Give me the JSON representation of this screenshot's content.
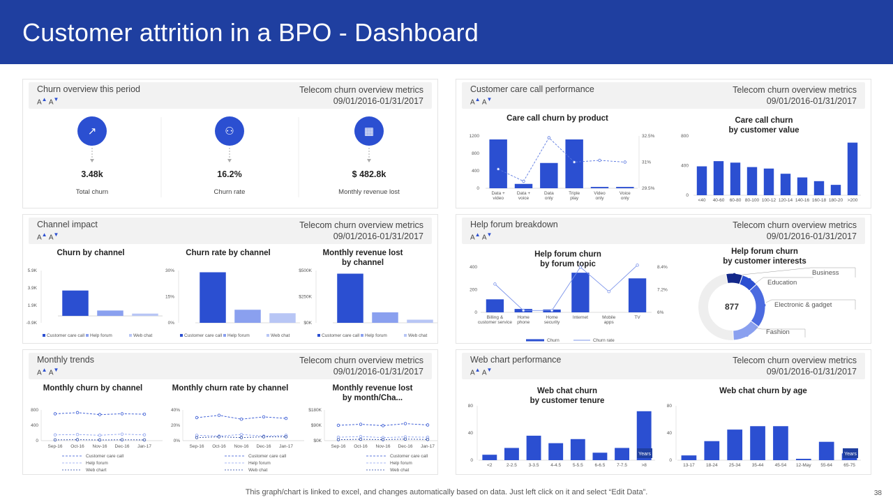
{
  "header": {
    "title": "Customer attrition in a BPO - Dashboard"
  },
  "common": {
    "metrics_label": "Telecom churn overview metrics",
    "date_range": "09/01/2016-01/31/2017",
    "font_toggle": "A A"
  },
  "panels": {
    "churn_overview": {
      "title": "Churn overview this period"
    },
    "care_call": {
      "title": "Customer care call performance"
    },
    "channel_impact": {
      "title": "Channel impact"
    },
    "help_forum": {
      "title": "Help forum breakdown"
    },
    "monthly_trends": {
      "title": "Monthly trends"
    },
    "web_chat": {
      "title": "Web chart performance"
    }
  },
  "kpis": [
    {
      "value": "3.48k",
      "label": "Total churn",
      "icon": "churn-chart-icon"
    },
    {
      "value": "16.2%",
      "label": "Churn rate",
      "icon": "churn-users-icon"
    },
    {
      "value": "$ 482.8k",
      "label": "Monthly revenue lost",
      "icon": "revenue-calendar-icon"
    }
  ],
  "colors": {
    "bar": "#2b4fd1",
    "light": "#8aa0ef",
    "lighter": "#b8c6f5",
    "header": "#1f3fa0"
  },
  "footer": {
    "note": "This graph/chart is linked to excel, and changes automatically based on data. Just left click on it and select “Edit Data”.",
    "page": "38"
  },
  "chart_data": [
    {
      "id": "care_product",
      "type": "bar",
      "title": "Care call churn by product",
      "categories": [
        "Data + video",
        "Data + voice",
        "Data only",
        "Triple play",
        "Video only",
        "Voice only"
      ],
      "series": [
        {
          "name": "Churn",
          "values": [
            1120,
            100,
            580,
            1120,
            30,
            30
          ]
        },
        {
          "name": "Churn rate",
          "values": [
            30.6,
            29.9,
            32.4,
            31.0,
            31.1,
            31.0
          ]
        }
      ],
      "y_ticks": [
        "1200",
        "800",
        "400",
        "0"
      ],
      "y2_ticks": [
        "32.5%",
        "31%",
        "29.5%"
      ],
      "ylim": [
        0,
        1200
      ],
      "y2lim": [
        29.5,
        32.5
      ]
    },
    {
      "id": "care_value",
      "type": "bar",
      "title": "Care call churn by customer value",
      "categories": [
        "<40",
        "40-60",
        "60-80",
        "80-100",
        "100-12",
        "120-14",
        "140-16",
        "160-18",
        "180-20",
        ">200"
      ],
      "values": [
        390,
        460,
        440,
        380,
        360,
        290,
        240,
        190,
        140,
        710
      ],
      "y_ticks": [
        "800",
        "400",
        "0"
      ],
      "ylim": [
        0,
        800
      ]
    },
    {
      "id": "churn_channel",
      "type": "bar",
      "title": "Churn by channel",
      "categories": [
        "Customer care call",
        "Help forum",
        "Web chat"
      ],
      "values": [
        3.3,
        0.7,
        0.3
      ],
      "y_ticks": [
        "5.9K",
        "3.9K",
        "1.9K",
        "-0.9K"
      ],
      "ylim": [
        -0.9,
        5.9
      ]
    },
    {
      "id": "rate_channel",
      "type": "bar",
      "title": "Churn rate by channel",
      "categories": [
        "Customer care call",
        "Help forum",
        "Web chat"
      ],
      "values": [
        29,
        7.5,
        5.5
      ],
      "y_ticks": [
        "30%",
        "15%",
        "0%"
      ],
      "ylim": [
        0,
        30
      ]
    },
    {
      "id": "revenue_channel",
      "type": "bar",
      "title": "Monthly revenue lost by channel",
      "categories": [
        "Customer care call",
        "Help forum",
        "Web chat"
      ],
      "values": [
        470,
        100,
        30
      ],
      "y_ticks": [
        "$500K",
        "$250K",
        "$0K"
      ],
      "ylim": [
        0,
        500
      ]
    },
    {
      "id": "forum_topic",
      "type": "bar",
      "title": "Help forum churn by forum topic",
      "categories": [
        "Billing & customer service",
        "Home phone",
        "Home security",
        "Internet",
        "Mobile apps",
        "TV"
      ],
      "series": [
        {
          "name": "Churn",
          "values": [
            115,
            30,
            25,
            350,
            0,
            300
          ]
        },
        {
          "name": "Churn rate",
          "values": [
            7.5,
            6.1,
            6.1,
            8.4,
            7.1,
            8.5
          ]
        }
      ],
      "y_ticks": [
        "400",
        "200",
        "0"
      ],
      "y2_ticks": [
        "8.4%",
        "7.2%",
        "6%"
      ],
      "ylim": [
        0,
        400
      ],
      "y2lim": [
        6,
        8.4
      ],
      "legend": [
        "Churn",
        "Churn rate"
      ]
    },
    {
      "id": "forum_interest",
      "type": "pie",
      "title": "Help forum churn by customer interests",
      "center_label": "877",
      "categories": [
        "Business",
        "Education",
        "Electronic & gadget",
        "Fashion"
      ],
      "values": [
        8,
        8,
        22,
        14
      ]
    },
    {
      "id": "trend_churn",
      "type": "line",
      "title": "Monthly churn by channel",
      "x": [
        "Sep-16",
        "Oct-16",
        "Nov-16",
        "Dec-16",
        "Jan-17"
      ],
      "series": [
        {
          "name": "Customer care call",
          "values": [
            700,
            730,
            680,
            700,
            690
          ]
        },
        {
          "name": "Help forum",
          "values": [
            150,
            160,
            140,
            170,
            150
          ]
        },
        {
          "name": "Web chart",
          "values": [
            20,
            25,
            18,
            22,
            20
          ]
        }
      ],
      "y_ticks": [
        "800",
        "400",
        "0"
      ],
      "ylim": [
        0,
        800
      ]
    },
    {
      "id": "trend_rate",
      "type": "line",
      "title": "Monthly churn rate by channel",
      "x": [
        "Sep-16",
        "Oct-16",
        "Nov-16",
        "Dec-16",
        "Jan-17"
      ],
      "series": [
        {
          "name": "Customer care call",
          "values": [
            30,
            33,
            28,
            31,
            29
          ]
        },
        {
          "name": "Help forum",
          "values": [
            7,
            6,
            8,
            6,
            7
          ]
        },
        {
          "name": "Web chat",
          "values": [
            4,
            5,
            4,
            5,
            5
          ]
        }
      ],
      "y_ticks": [
        "40%",
        "20%",
        "0%"
      ],
      "ylim": [
        0,
        40
      ]
    },
    {
      "id": "trend_revenue",
      "type": "line",
      "title": "Monthly revenue lost by month/Cha...",
      "x": [
        "Sep-16",
        "Oct-16",
        "Nov-16",
        "Dec-16",
        "Jan-17"
      ],
      "series": [
        {
          "name": "Customer care call",
          "values": [
            90,
            96,
            88,
            100,
            92
          ]
        },
        {
          "name": "Help forum",
          "values": [
            20,
            24,
            18,
            22,
            20
          ]
        },
        {
          "name": "Web chat",
          "values": [
            6,
            8,
            6,
            9,
            7
          ]
        }
      ],
      "y_ticks": [
        "$180K",
        "$90K",
        "$0K"
      ],
      "ylim": [
        0,
        180
      ]
    },
    {
      "id": "web_tenure",
      "type": "bar",
      "title": "Web chat churn by customer tenure",
      "categories": [
        "<2",
        "2-2.5",
        "3-3.5",
        "4-4.5",
        "5-5.5",
        "6-6.5",
        "7-7.5",
        ">8"
      ],
      "values": [
        8,
        18,
        36,
        25,
        31,
        11,
        18,
        72
      ],
      "y_ticks": [
        "80",
        "40",
        "0"
      ],
      "ylim": [
        0,
        80
      ],
      "badge": "Years"
    },
    {
      "id": "web_age",
      "type": "bar",
      "title": "Web chat churn by age",
      "categories": [
        "13-17",
        "18-24",
        "25-34",
        "35-44",
        "45-54",
        "12-May",
        "55-64",
        "65-75"
      ],
      "values": [
        7,
        28,
        45,
        50,
        50,
        2,
        27,
        10
      ],
      "y_ticks": [
        "80",
        "40",
        "0"
      ],
      "ylim": [
        0,
        80
      ],
      "badge": "Years"
    }
  ]
}
